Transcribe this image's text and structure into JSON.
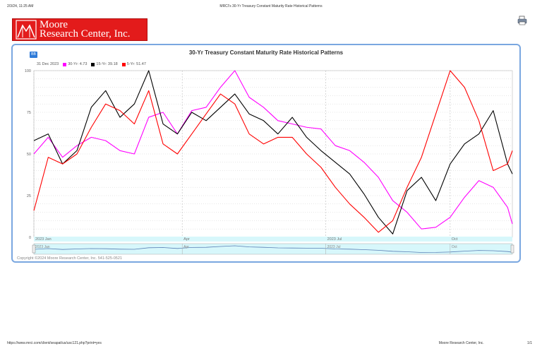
{
  "header": {
    "datetime": "2/3/24, 11:25 AM",
    "page_title": "MRCI's 30-Yr Treasury Constant Maturity Rate Historical Patterns"
  },
  "logo": {
    "line1": "Moore",
    "line2": "Research Center, Inc."
  },
  "print_icon": "printer-icon",
  "badge": "BB",
  "footer": {
    "url": "https://www.mrci.com/client/seapat/us/usc121.php?print=yes",
    "page": "1/1",
    "brand": "Moore Research Center, Inc."
  },
  "copyright": "Copyright ©2024 Moore Research Center, Inc. 541-525-0521",
  "colors": {
    "s30": "#ff00ff",
    "s15": "#000000",
    "s5": "#ff0000",
    "frame": "#7aa7e0",
    "navigator": "#d7f7fb"
  },
  "chart_data": {
    "type": "line",
    "title": "30-Yr Treasury Constant Maturity Rate Historical Patterns",
    "date_label": "31 Dec 2023",
    "x_ticks": [
      "2023 Jan",
      "Apr",
      "2023 Jul",
      "Oct"
    ],
    "x_tick_pos": [
      0,
      0.31,
      0.61,
      0.87
    ],
    "navigator_ticks": [
      "2023 Jan",
      "Apr",
      "2023 Jul",
      "Oct"
    ],
    "y_ticks": [
      "100",
      "75",
      "50",
      "25",
      "0"
    ],
    "ylim": [
      0,
      100
    ],
    "grid": true,
    "legend_position": "top-left",
    "series": [
      {
        "key": "s30",
        "label": "30-Yr: 4.73",
        "x": [
          0.0,
          0.03,
          0.06,
          0.09,
          0.12,
          0.15,
          0.18,
          0.21,
          0.24,
          0.27,
          0.3,
          0.33,
          0.36,
          0.39,
          0.42,
          0.45,
          0.48,
          0.51,
          0.54,
          0.57,
          0.6,
          0.63,
          0.66,
          0.69,
          0.72,
          0.75,
          0.78,
          0.81,
          0.84,
          0.87,
          0.9,
          0.93,
          0.96,
          0.99,
          1.0
        ],
        "y": [
          50,
          60,
          48,
          55,
          60,
          58,
          52,
          50,
          72,
          75,
          62,
          76,
          78,
          90,
          100,
          84,
          78,
          70,
          68,
          66,
          65,
          55,
          52,
          45,
          36,
          22,
          15,
          5,
          6,
          12,
          24,
          34,
          30,
          18,
          8
        ]
      },
      {
        "key": "s15",
        "label": "15-Yr: 39.18",
        "x": [
          0.0,
          0.03,
          0.06,
          0.09,
          0.12,
          0.15,
          0.18,
          0.21,
          0.24,
          0.27,
          0.3,
          0.33,
          0.36,
          0.39,
          0.42,
          0.45,
          0.48,
          0.51,
          0.54,
          0.57,
          0.6,
          0.63,
          0.66,
          0.69,
          0.72,
          0.75,
          0.78,
          0.81,
          0.84,
          0.87,
          0.9,
          0.93,
          0.96,
          0.99,
          1.0
        ],
        "y": [
          58,
          62,
          44,
          52,
          78,
          88,
          72,
          80,
          100,
          68,
          62,
          75,
          70,
          78,
          86,
          74,
          70,
          62,
          72,
          60,
          52,
          45,
          38,
          26,
          12,
          2,
          28,
          36,
          22,
          44,
          56,
          62,
          76,
          44,
          38
        ]
      },
      {
        "key": "s5",
        "label": "5-Yr: 51.47",
        "x": [
          0.0,
          0.03,
          0.06,
          0.09,
          0.12,
          0.15,
          0.18,
          0.21,
          0.24,
          0.27,
          0.3,
          0.33,
          0.36,
          0.39,
          0.42,
          0.45,
          0.48,
          0.51,
          0.54,
          0.57,
          0.6,
          0.63,
          0.66,
          0.69,
          0.72,
          0.75,
          0.78,
          0.81,
          0.84,
          0.87,
          0.9,
          0.93,
          0.96,
          0.99,
          1.0
        ],
        "y": [
          16,
          48,
          44,
          50,
          66,
          80,
          76,
          68,
          88,
          56,
          50,
          62,
          74,
          86,
          80,
          62,
          56,
          60,
          60,
          50,
          42,
          30,
          20,
          12,
          3,
          10,
          30,
          48,
          74,
          100,
          90,
          70,
          40,
          44,
          52
        ]
      }
    ]
  }
}
